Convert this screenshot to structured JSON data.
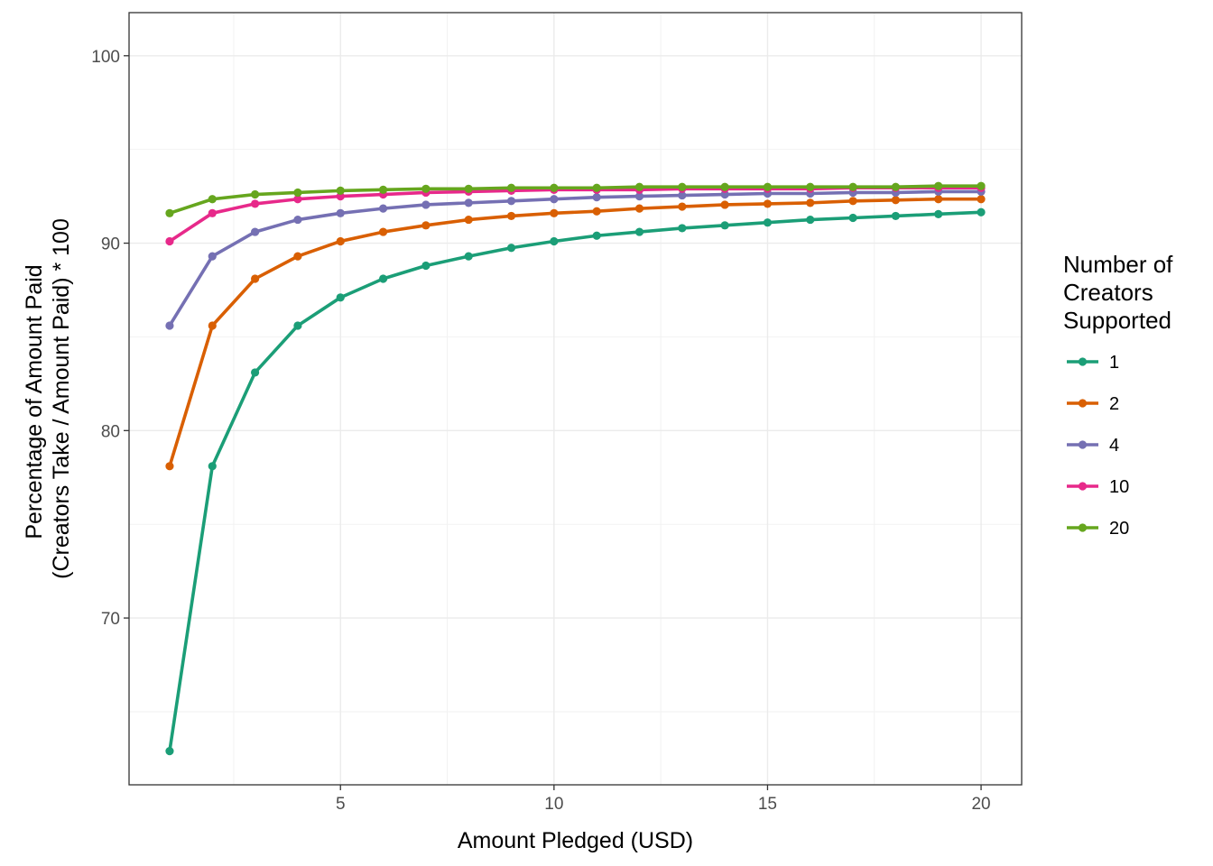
{
  "chart_data": {
    "type": "line",
    "xlabel": "Amount Pledged (USD)",
    "ylabel": [
      "Percentage of Amount Paid",
      "(Creators Take / Amount Paid) * 100"
    ],
    "xlim": [
      0.05,
      20.95
    ],
    "ylim": [
      61.1,
      102.3
    ],
    "x_ticks": [
      5,
      10,
      15,
      20
    ],
    "y_ticks": [
      70,
      80,
      90,
      100
    ],
    "x_minor": [
      2.5,
      7.5,
      12.5,
      17.5
    ],
    "y_minor": [
      65,
      75,
      85,
      95
    ],
    "grid": true,
    "legend": {
      "title": [
        "Number of",
        "Creators",
        "Supported"
      ],
      "position": "right"
    },
    "x": [
      1,
      2,
      3,
      4,
      5,
      6,
      7,
      8,
      9,
      10,
      11,
      12,
      13,
      14,
      15,
      16,
      17,
      18,
      19,
      20
    ],
    "series": [
      {
        "name": "1",
        "color": "#1b9e77",
        "values": [
          62.9,
          78.1,
          83.1,
          85.6,
          87.1,
          88.1,
          88.8,
          89.3,
          89.75,
          90.1,
          90.4,
          90.6,
          90.8,
          90.95,
          91.1,
          91.25,
          91.35,
          91.45,
          91.55,
          91.65
        ]
      },
      {
        "name": "2",
        "color": "#d95f02",
        "values": [
          78.1,
          85.6,
          88.1,
          89.3,
          90.1,
          90.6,
          90.95,
          91.25,
          91.45,
          91.6,
          91.7,
          91.85,
          91.95,
          92.05,
          92.1,
          92.15,
          92.25,
          92.3,
          92.35,
          92.35
        ]
      },
      {
        "name": "4",
        "color": "#7570b3",
        "values": [
          85.6,
          89.3,
          90.6,
          91.25,
          91.6,
          91.85,
          92.05,
          92.15,
          92.25,
          92.35,
          92.45,
          92.5,
          92.55,
          92.6,
          92.65,
          92.65,
          92.7,
          92.7,
          92.75,
          92.75
        ]
      },
      {
        "name": "10",
        "color": "#e7298a",
        "values": [
          90.1,
          91.6,
          92.1,
          92.35,
          92.5,
          92.6,
          92.7,
          92.75,
          92.8,
          92.85,
          92.85,
          92.85,
          92.9,
          92.9,
          92.9,
          92.9,
          92.95,
          92.95,
          92.95,
          92.95
        ]
      },
      {
        "name": "20",
        "color": "#66a61e",
        "values": [
          91.6,
          92.35,
          92.6,
          92.7,
          92.8,
          92.85,
          92.9,
          92.9,
          92.95,
          92.95,
          92.95,
          93.0,
          93.0,
          93.0,
          93.0,
          93.0,
          93.0,
          93.0,
          93.05,
          93.05
        ]
      }
    ]
  }
}
